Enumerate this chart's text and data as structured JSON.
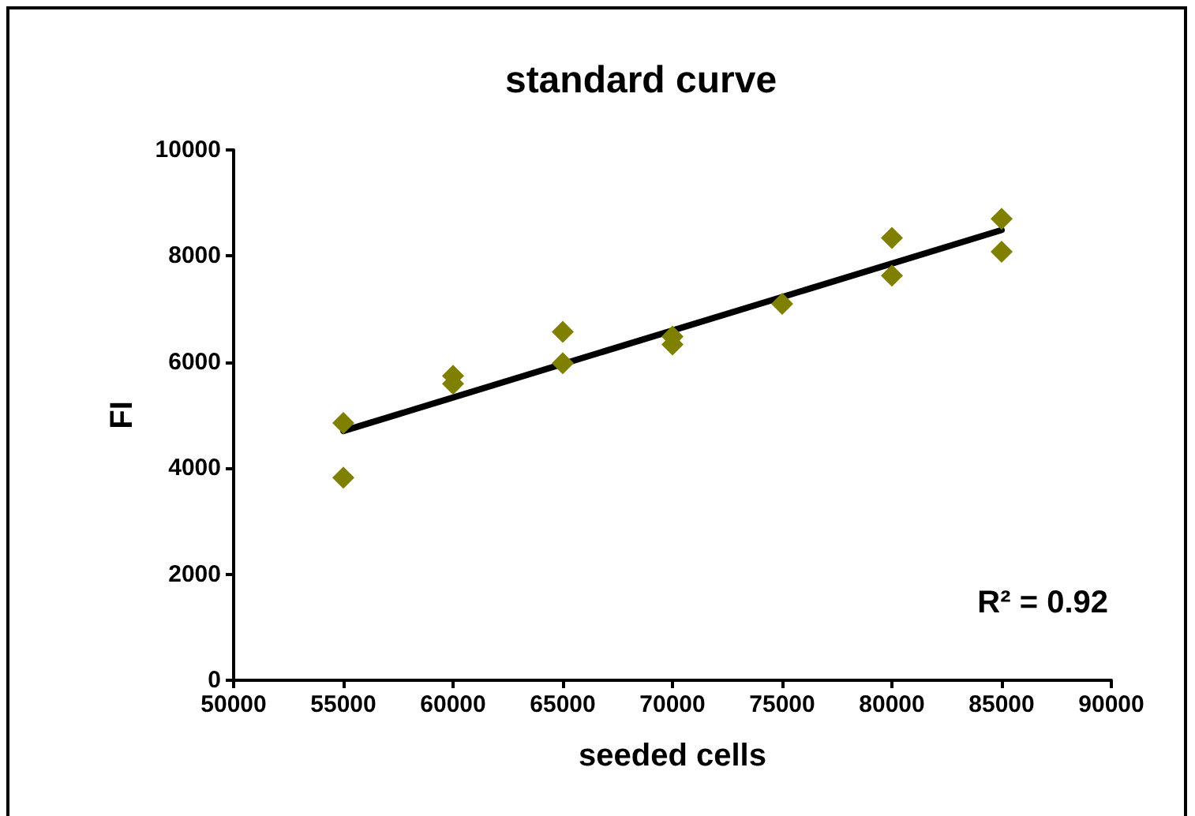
{
  "chart_data": {
    "type": "scatter",
    "title": "standard curve",
    "xlabel": "seeded cells",
    "ylabel": "FI",
    "annotations": [
      "R² = 0.92"
    ],
    "series": [
      {
        "color": "#808000",
        "marker": "diamond",
        "x": [
          55000,
          55000,
          60000,
          60000,
          65000,
          65000,
          70000,
          70000,
          75000,
          80000,
          80000,
          85000,
          85000
        ],
        "values": [
          4850,
          3820,
          5740,
          5590,
          6570,
          5980,
          6480,
          6330,
          7100,
          8340,
          7630,
          8700,
          8080
        ]
      },
      {
        "type": "line",
        "color": "#000000",
        "marker": "none",
        "x": [
          55000,
          85000
        ],
        "values": [
          4700,
          8490
        ]
      }
    ],
    "xlim": [
      50000,
      90000
    ],
    "xticks": [
      50000,
      55000,
      60000,
      65000,
      70000,
      75000,
      80000,
      85000,
      90000
    ],
    "ylim": [
      0,
      10000
    ],
    "yticks": [
      0,
      2000,
      4000,
      6000,
      8000,
      10000
    ],
    "grid": false
  }
}
